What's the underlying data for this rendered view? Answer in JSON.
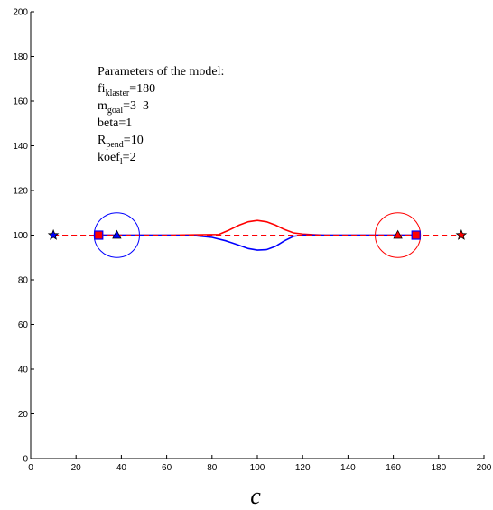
{
  "chart_data": {
    "type": "line",
    "title": "",
    "xlabel": "",
    "ylabel": "",
    "xlim": [
      0,
      200
    ],
    "ylim": [
      0,
      200
    ],
    "xticks": [
      0,
      20,
      40,
      60,
      80,
      100,
      120,
      140,
      160,
      180,
      200
    ],
    "yticks": [
      0,
      20,
      40,
      60,
      80,
      100,
      120,
      140,
      160,
      180,
      200
    ],
    "grid": false,
    "colors": {
      "red": "#ff0000",
      "blue": "#0000ff",
      "axis": "#000000"
    },
    "series": [
      {
        "color": "#ff0000",
        "style": "solid",
        "x": [
          30,
          60,
          83,
          87,
          92,
          96,
          100,
          104,
          108,
          112,
          116,
          120,
          125,
          130,
          160,
          170
        ],
        "y": [
          100,
          100,
          100.3,
          102,
          104.5,
          106,
          106.6,
          106,
          104.5,
          102.5,
          101,
          100.5,
          100.2,
          100,
          100,
          100
        ]
      },
      {
        "color": "#0000ff",
        "style": "solid",
        "x": [
          30,
          60,
          72,
          80,
          86,
          91,
          96,
          100,
          104,
          108,
          112,
          116,
          120,
          130,
          160,
          170
        ],
        "y": [
          100,
          100,
          99.8,
          99,
          97.5,
          95.8,
          94,
          93.3,
          93.5,
          95,
          97.5,
          99.5,
          100,
          100,
          100,
          100
        ]
      },
      {
        "color": "#0000ff",
        "style": "dashed",
        "x": [
          10,
          190
        ],
        "y": [
          100,
          100
        ]
      },
      {
        "color": "#ff0000",
        "style": "dashed",
        "x": [
          10,
          190
        ],
        "y": [
          100,
          100
        ]
      }
    ],
    "circles": [
      {
        "color": "#0000ff",
        "cx": 38,
        "cy": 100,
        "r": 10
      },
      {
        "color": "#ff0000",
        "cx": 162,
        "cy": 100,
        "r": 10
      }
    ],
    "markers": [
      {
        "shape": "star",
        "fill": "#0000ff",
        "stroke": "#000000",
        "x": 10,
        "y": 100
      },
      {
        "shape": "square",
        "fill": "#ff0000",
        "stroke": "#0000ff",
        "x": 30,
        "y": 100
      },
      {
        "shape": "triangle",
        "fill": "#0000ff",
        "stroke": "#000000",
        "x": 38,
        "y": 100
      },
      {
        "shape": "triangle",
        "fill": "#ff0000",
        "stroke": "#000000",
        "x": 162,
        "y": 100
      },
      {
        "shape": "square",
        "fill": "#ff0000",
        "stroke": "#0000ff",
        "x": 170,
        "y": 100
      },
      {
        "shape": "star",
        "fill": "#ff0000",
        "stroke": "#000000",
        "x": 190,
        "y": 100
      }
    ],
    "annotation": {
      "heading": "Parameters of the model:",
      "lines": [
        {
          "main": "fi",
          "sub": "klaster",
          "rest": "=180"
        },
        {
          "main": "m",
          "sub": "goal",
          "rest": "=3  3"
        },
        {
          "main": "beta=1",
          "sub": "",
          "rest": ""
        },
        {
          "main": "R",
          "sub": "pend",
          "rest": "=10"
        },
        {
          "main": "koef",
          "sub": "l",
          "rest": "=2"
        }
      ]
    },
    "caption": "c"
  }
}
